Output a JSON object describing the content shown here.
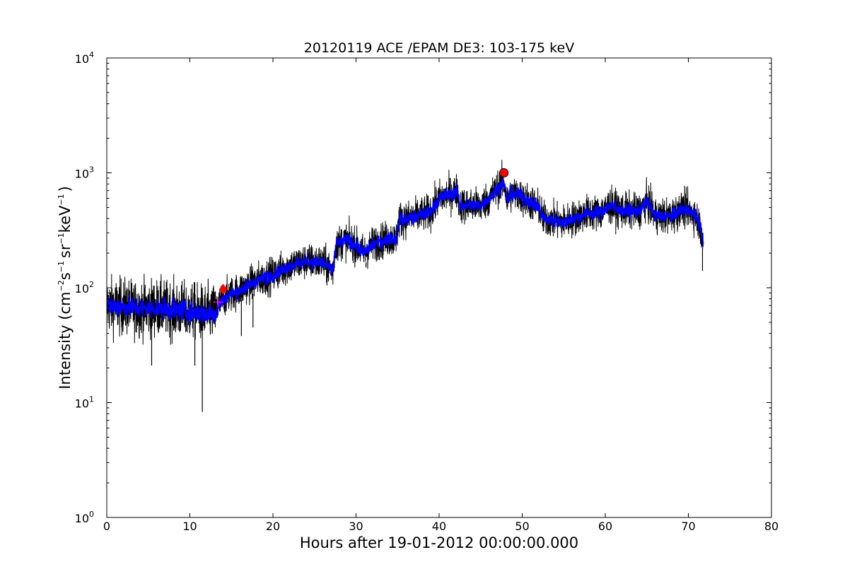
{
  "chart_data": {
    "type": "line",
    "title": "20120119 ACE /EPAM DE3: 103-175 keV",
    "xlabel": "Hours after 19-01-2012 00:00:00.000",
    "ylabel": {
      "prefix": "Intensity (cm",
      "exp1": "−2",
      "mid1": "s",
      "exp2": "−1",
      "mid2": "sr",
      "exp3": "−1",
      "mid3": "keV",
      "exp4": "−1",
      "suffix": ")"
    },
    "xlim": [
      0,
      80
    ],
    "ylim": [
      1,
      10000
    ],
    "yscale": "log",
    "grid": false,
    "x_ticks": [
      "0",
      "10",
      "20",
      "30",
      "40",
      "50",
      "60",
      "70",
      "80"
    ],
    "y_ticks": [
      {
        "base": "10",
        "exp": "0"
      },
      {
        "base": "10",
        "exp": "1"
      },
      {
        "base": "10",
        "exp": "2"
      },
      {
        "base": "10",
        "exp": "3"
      },
      {
        "base": "10",
        "exp": "4"
      }
    ],
    "series": [
      {
        "color": "#000000",
        "style": "raw, noisy",
        "x": [
          0,
          2,
          4,
          6,
          8,
          10,
          12,
          13.2,
          13.5,
          14.5,
          16,
          18,
          20,
          22,
          24,
          26,
          27.2,
          27.6,
          29,
          30,
          31,
          32,
          34,
          34.8,
          35.2,
          37,
          39,
          40,
          42.2,
          42.5,
          45,
          46,
          47.5,
          47.8,
          48.2,
          48.5,
          49,
          50.5,
          52,
          52.5,
          55,
          58,
          59.5,
          60.5,
          62,
          64,
          65,
          66,
          68,
          69,
          70,
          71,
          71.5,
          71.8
        ],
        "y": [
          70,
          68,
          66,
          67,
          64,
          62,
          60,
          60,
          72,
          85,
          95,
          115,
          130,
          155,
          170,
          165,
          140,
          240,
          260,
          230,
          200,
          240,
          270,
          260,
          390,
          410,
          460,
          600,
          690,
          520,
          520,
          600,
          800,
          820,
          560,
          650,
          660,
          580,
          500,
          400,
          370,
          450,
          450,
          520,
          470,
          460,
          560,
          420,
          420,
          480,
          480,
          410,
          330,
          250
        ],
        "spikes": [
          {
            "x": 11.5,
            "y": 8.3
          },
          {
            "x": 5.4,
            "y": 21
          },
          {
            "x": 10.6,
            "y": 21
          },
          {
            "x": 16.2,
            "y": 38
          },
          {
            "x": 17.6,
            "y": 45
          },
          {
            "x": 26.5,
            "y": 105
          },
          {
            "x": 31.2,
            "y": 150
          },
          {
            "x": 71.7,
            "y": 140
          }
        ]
      },
      {
        "color": "#0000ff",
        "style": "smoothed",
        "x": [
          0,
          2,
          4,
          6,
          8,
          10,
          12,
          13.2,
          13.5,
          14.5,
          16,
          18,
          20,
          22,
          24,
          26,
          27.2,
          27.6,
          29,
          30,
          31,
          32,
          34,
          34.8,
          35.2,
          37,
          39,
          40,
          42.2,
          42.5,
          45,
          46,
          47.5,
          47.8,
          48.2,
          48.5,
          49,
          50.5,
          52,
          52.5,
          55,
          58,
          59.5,
          60.5,
          62,
          64,
          65,
          66,
          68,
          69,
          70,
          71,
          71.5,
          71.8
        ],
        "y": [
          70,
          68,
          66,
          67,
          64,
          62,
          60,
          60,
          72,
          85,
          95,
          115,
          130,
          155,
          170,
          165,
          140,
          240,
          260,
          230,
          200,
          240,
          270,
          260,
          390,
          410,
          460,
          600,
          690,
          520,
          520,
          600,
          800,
          820,
          560,
          650,
          660,
          580,
          500,
          400,
          370,
          450,
          450,
          520,
          470,
          460,
          560,
          420,
          420,
          480,
          480,
          410,
          330,
          250
        ]
      }
    ],
    "markers": [
      {
        "shape": "circle",
        "x": 47.8,
        "y": 1000,
        "color": "#ff0000"
      },
      {
        "shape": "diamond",
        "x": 14.0,
        "y": 97,
        "color": "#ff0000"
      },
      {
        "shape": "plus",
        "x": 13.4,
        "y": 75,
        "color": "#ff00ff"
      }
    ]
  }
}
